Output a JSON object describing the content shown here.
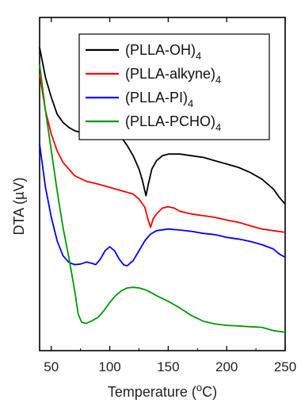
{
  "chart_data": {
    "type": "line",
    "xlabel": {
      "main": "Temperature (",
      "sup": "o",
      "tail": "C)"
    },
    "ylabel": "DTA (µV)",
    "xlim": [
      40,
      250
    ],
    "ylim": [
      0,
      1
    ],
    "x_ticks": [
      50,
      100,
      150,
      200,
      250
    ],
    "y_ticks_labeled": false,
    "legend_position": "top-right",
    "series": [
      {
        "name": {
          "main": "(PLLA-OH)",
          "sub": "4"
        },
        "color": "#000000",
        "points": [
          [
            40,
            0.91
          ],
          [
            45,
            0.82
          ],
          [
            50,
            0.76
          ],
          [
            55,
            0.71
          ],
          [
            60,
            0.685
          ],
          [
            65,
            0.67
          ],
          [
            70,
            0.66
          ],
          [
            75,
            0.655
          ],
          [
            80,
            0.653
          ],
          [
            90,
            0.655
          ],
          [
            100,
            0.656
          ],
          [
            105,
            0.654
          ],
          [
            110,
            0.64
          ],
          [
            115,
            0.615
          ],
          [
            120,
            0.585
          ],
          [
            125,
            0.545
          ],
          [
            128,
            0.51
          ],
          [
            131,
            0.465
          ],
          [
            133,
            0.5
          ],
          [
            136,
            0.545
          ],
          [
            140,
            0.57
          ],
          [
            145,
            0.585
          ],
          [
            150,
            0.59
          ],
          [
            160,
            0.59
          ],
          [
            170,
            0.585
          ],
          [
            180,
            0.58
          ],
          [
            190,
            0.57
          ],
          [
            200,
            0.56
          ],
          [
            210,
            0.55
          ],
          [
            220,
            0.535
          ],
          [
            230,
            0.515
          ],
          [
            240,
            0.485
          ],
          [
            245,
            0.46
          ],
          [
            250,
            0.44
          ]
        ]
      },
      {
        "name": {
          "main": "(PLLA-alkyne)",
          "sub": "4"
        },
        "color": "#ff0000",
        "points": [
          [
            40,
            0.83
          ],
          [
            45,
            0.72
          ],
          [
            50,
            0.65
          ],
          [
            55,
            0.6
          ],
          [
            60,
            0.565
          ],
          [
            65,
            0.545
          ],
          [
            70,
            0.525
          ],
          [
            80,
            0.508
          ],
          [
            90,
            0.5
          ],
          [
            100,
            0.49
          ],
          [
            110,
            0.48
          ],
          [
            120,
            0.47
          ],
          [
            125,
            0.455
          ],
          [
            130,
            0.43
          ],
          [
            133,
            0.39
          ],
          [
            135,
            0.37
          ],
          [
            137,
            0.395
          ],
          [
            140,
            0.41
          ],
          [
            145,
            0.428
          ],
          [
            150,
            0.432
          ],
          [
            155,
            0.428
          ],
          [
            160,
            0.418
          ],
          [
            170,
            0.41
          ],
          [
            180,
            0.405
          ],
          [
            190,
            0.4
          ],
          [
            200,
            0.392
          ],
          [
            210,
            0.385
          ],
          [
            220,
            0.375
          ],
          [
            230,
            0.365
          ],
          [
            240,
            0.36
          ],
          [
            250,
            0.355
          ]
        ]
      },
      {
        "name": {
          "main": "(PLLA-PI)",
          "sub": "4"
        },
        "color": "#0000ff",
        "points": [
          [
            40,
            0.62
          ],
          [
            45,
            0.49
          ],
          [
            50,
            0.4
          ],
          [
            55,
            0.33
          ],
          [
            60,
            0.285
          ],
          [
            65,
            0.265
          ],
          [
            70,
            0.258
          ],
          [
            75,
            0.26
          ],
          [
            80,
            0.266
          ],
          [
            85,
            0.262
          ],
          [
            88,
            0.258
          ],
          [
            92,
            0.275
          ],
          [
            96,
            0.3
          ],
          [
            100,
            0.312
          ],
          [
            104,
            0.3
          ],
          [
            108,
            0.275
          ],
          [
            112,
            0.257
          ],
          [
            115,
            0.255
          ],
          [
            120,
            0.27
          ],
          [
            125,
            0.3
          ],
          [
            130,
            0.33
          ],
          [
            135,
            0.35
          ],
          [
            140,
            0.36
          ],
          [
            150,
            0.365
          ],
          [
            160,
            0.362
          ],
          [
            170,
            0.358
          ],
          [
            180,
            0.352
          ],
          [
            190,
            0.348
          ],
          [
            200,
            0.34
          ],
          [
            210,
            0.335
          ],
          [
            220,
            0.328
          ],
          [
            230,
            0.318
          ],
          [
            240,
            0.305
          ],
          [
            245,
            0.29
          ],
          [
            250,
            0.28
          ]
        ]
      },
      {
        "name": {
          "main": "(PLLA-PCHO)",
          "sub": "4"
        },
        "color": "#009900",
        "points": [
          [
            40,
            0.86
          ],
          [
            45,
            0.72
          ],
          [
            50,
            0.6
          ],
          [
            55,
            0.48
          ],
          [
            60,
            0.37
          ],
          [
            65,
            0.28
          ],
          [
            70,
            0.18
          ],
          [
            73,
            0.11
          ],
          [
            76,
            0.085
          ],
          [
            80,
            0.082
          ],
          [
            85,
            0.09
          ],
          [
            90,
            0.1
          ],
          [
            95,
            0.12
          ],
          [
            100,
            0.145
          ],
          [
            105,
            0.165
          ],
          [
            110,
            0.18
          ],
          [
            115,
            0.188
          ],
          [
            120,
            0.19
          ],
          [
            125,
            0.188
          ],
          [
            130,
            0.183
          ],
          [
            135,
            0.175
          ],
          [
            140,
            0.165
          ],
          [
            150,
            0.148
          ],
          [
            160,
            0.128
          ],
          [
            170,
            0.105
          ],
          [
            180,
            0.088
          ],
          [
            190,
            0.08
          ],
          [
            200,
            0.076
          ],
          [
            210,
            0.074
          ],
          [
            220,
            0.072
          ],
          [
            230,
            0.07
          ],
          [
            240,
            0.06
          ],
          [
            250,
            0.055
          ]
        ]
      }
    ]
  }
}
